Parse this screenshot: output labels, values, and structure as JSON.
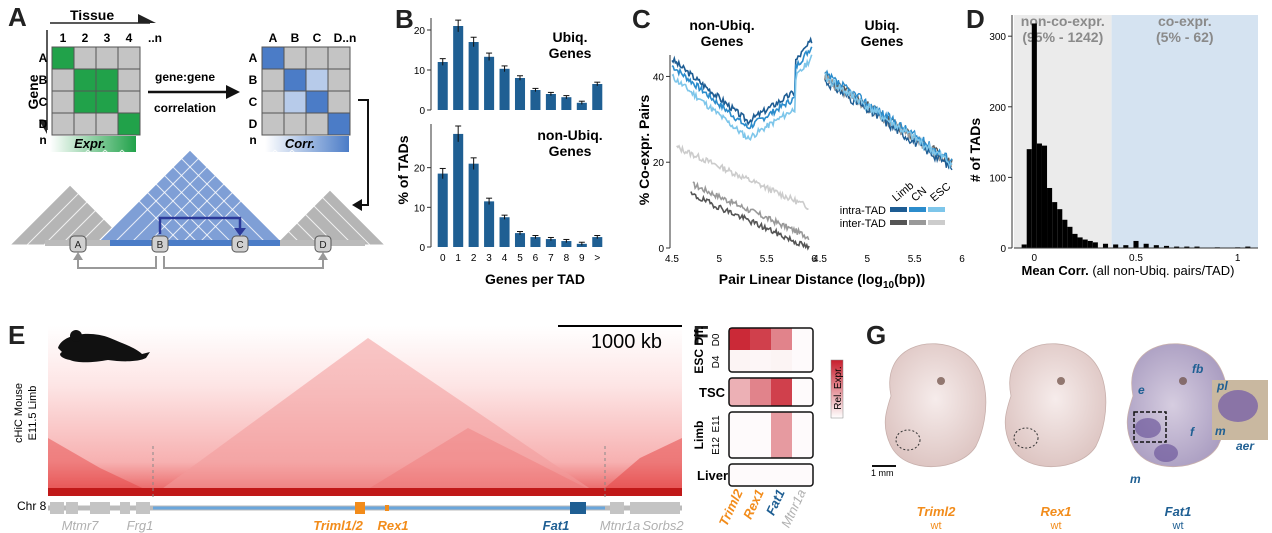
{
  "panel_labels": {
    "a": "A",
    "b": "B",
    "c": "C",
    "d": "D",
    "e": "E",
    "f": "F",
    "g": "G"
  },
  "panel_a": {
    "tissue_label": "Tissue",
    "tissue_cols": [
      "1",
      "2",
      "3",
      "4",
      "..n"
    ],
    "gene_label": "Gene",
    "gene_rows": [
      "A",
      "B",
      "C",
      "D",
      "n"
    ],
    "corr_cols": [
      "A",
      "B",
      "C",
      "D..n"
    ],
    "corr_rows": [
      "A",
      "B",
      "C",
      "D",
      "n"
    ],
    "arrow_text_1": "gene:gene",
    "arrow_text_2": "correlation",
    "expr_label": "Expr.",
    "corr_label": "Corr.",
    "tad_genes": [
      "A",
      "B",
      "C",
      "D"
    ],
    "colors": {
      "green": "#21a24a",
      "blue": "#4b7cc7",
      "lightblue": "#b7cbea",
      "grey": "#c4c4c4"
    }
  },
  "panel_b": {
    "ylabel": "% of TADs",
    "xlabel": "Genes per TAD",
    "top_title_1": "Ubiq.",
    "top_title_2": "Genes",
    "bottom_title_1": "non-Ubiq.",
    "bottom_title_2": "Genes",
    "color": "#1f5f93"
  },
  "panel_c": {
    "title_left_1": "non-Ubiq.",
    "title_left_2": "Genes",
    "title_right_1": "Ubiq.",
    "title_right_2": "Genes",
    "ylabel": "% Co-expr. Pairs",
    "xlabel": "Pair Linear Distance (log",
    "xlabel_sub": "10",
    "xlabel_end": "(bp))",
    "legend_cols": [
      "Limb",
      "CN",
      "ESC"
    ],
    "legend_rows": [
      "intra-TAD",
      "inter-TAD"
    ],
    "colors": {
      "limb": "#1d5c93",
      "cn": "#2b8ccc",
      "esc": "#7ec6ea",
      "inter_limb": "#555555",
      "inter_cn": "#999999",
      "inter_esc": "#cccccc"
    }
  },
  "panel_d": {
    "left_title_1": "non-co-expr.",
    "left_title_2": "(95% - 1242)",
    "right_title_1": "co-expr.",
    "right_title_2": "(5% - 62)",
    "ylabel": "# of TADs",
    "xlabel_bold": "Mean Corr.",
    "xlabel_rest": " (all non-Ubiq. pairs/TAD)"
  },
  "panel_e": {
    "scale_label": "1000 kb",
    "ylabel_1": "cHiC Mouse",
    "ylabel_2": "E11.5 Limb",
    "chr_label": "Chr 8",
    "genes": [
      {
        "name": "Mtmr7",
        "color": "#b0b0b0"
      },
      {
        "name": "Frg1",
        "color": "#b0b0b0"
      },
      {
        "name": "Triml1/2",
        "color": "#f28c1b"
      },
      {
        "name": "Rex1",
        "color": "#f28c1b"
      },
      {
        "name": "Fat1",
        "color": "#1f5f93"
      },
      {
        "name": "Mtnr1a",
        "color": "#b0b0b0"
      },
      {
        "name": "Sorbs2",
        "color": "#b0b0b0"
      }
    ]
  },
  "panel_f": {
    "groups": [
      "ESC Dif.",
      "TSC",
      "Limb",
      "Liver"
    ],
    "sub_rows": [
      "D0",
      "D4",
      "E11",
      "E12"
    ],
    "genes": [
      "Triml2",
      "Rex1",
      "Fat1",
      "Mtnr1a"
    ],
    "legend": "Rel. Expr.",
    "gene_colors": [
      "#f28c1b",
      "#f28c1b",
      "#1f5f93",
      "#b0b0b0"
    ]
  },
  "panel_g": {
    "scale": "1 mm",
    "embryos": [
      {
        "gene": "Triml2",
        "sub": "wt",
        "color": "#f28c1b"
      },
      {
        "gene": "Rex1",
        "sub": "wt",
        "color": "#f28c1b"
      },
      {
        "gene": "Fat1",
        "sub": "wt",
        "color": "#1f5f93"
      }
    ],
    "annotations": [
      "fb",
      "e",
      "f",
      "m",
      "pl",
      "m",
      "aer"
    ]
  },
  "chart_data": [
    {
      "type": "bar",
      "title": "Ubiq. Genes",
      "xlabel": "Genes per TAD",
      "ylabel": "% of TADs",
      "categories": [
        "0",
        "1",
        "2",
        "3",
        "4",
        "5",
        "6",
        "7",
        "8",
        "9",
        ">"
      ],
      "values": [
        12,
        21,
        17,
        13.3,
        10.3,
        8,
        5,
        4,
        3.2,
        1.8,
        6.5
      ],
      "ylim": [
        0,
        23
      ]
    },
    {
      "type": "bar",
      "title": "non-Ubiq. Genes",
      "xlabel": "Genes per TAD",
      "ylabel": "% of TADs",
      "categories": [
        "0",
        "1",
        "2",
        "3",
        "4",
        "5",
        "6",
        "7",
        "8",
        "9",
        ">"
      ],
      "values": [
        18.5,
        28.5,
        21,
        11.5,
        7.5,
        3.5,
        2.5,
        2,
        1.5,
        0.8,
        2.5
      ],
      "ylim": [
        0,
        31
      ]
    },
    {
      "type": "histogram",
      "title": "",
      "xlabel": "Mean Corr. (all non-Ubiq. pairs/TAD)",
      "ylabel": "# of TADs",
      "x": [
        -0.05,
        -0.025,
        0,
        0.025,
        0.05,
        0.075,
        0.1,
        0.125,
        0.15,
        0.175,
        0.2,
        0.225,
        0.25,
        0.275,
        0.3,
        0.35,
        0.4,
        0.45,
        0.5,
        0.55,
        0.6,
        0.65,
        0.7,
        0.75,
        0.8,
        0.9,
        1.0,
        1.05
      ],
      "values": [
        5,
        140,
        318,
        148,
        145,
        85,
        65,
        55,
        40,
        30,
        20,
        15,
        12,
        10,
        8,
        6,
        5,
        4,
        10,
        6,
        4,
        3,
        2,
        2,
        2,
        1,
        1,
        2
      ],
      "ylim": [
        0,
        330
      ],
      "xticks": [
        "0",
        "0.5",
        "1"
      ]
    }
  ]
}
